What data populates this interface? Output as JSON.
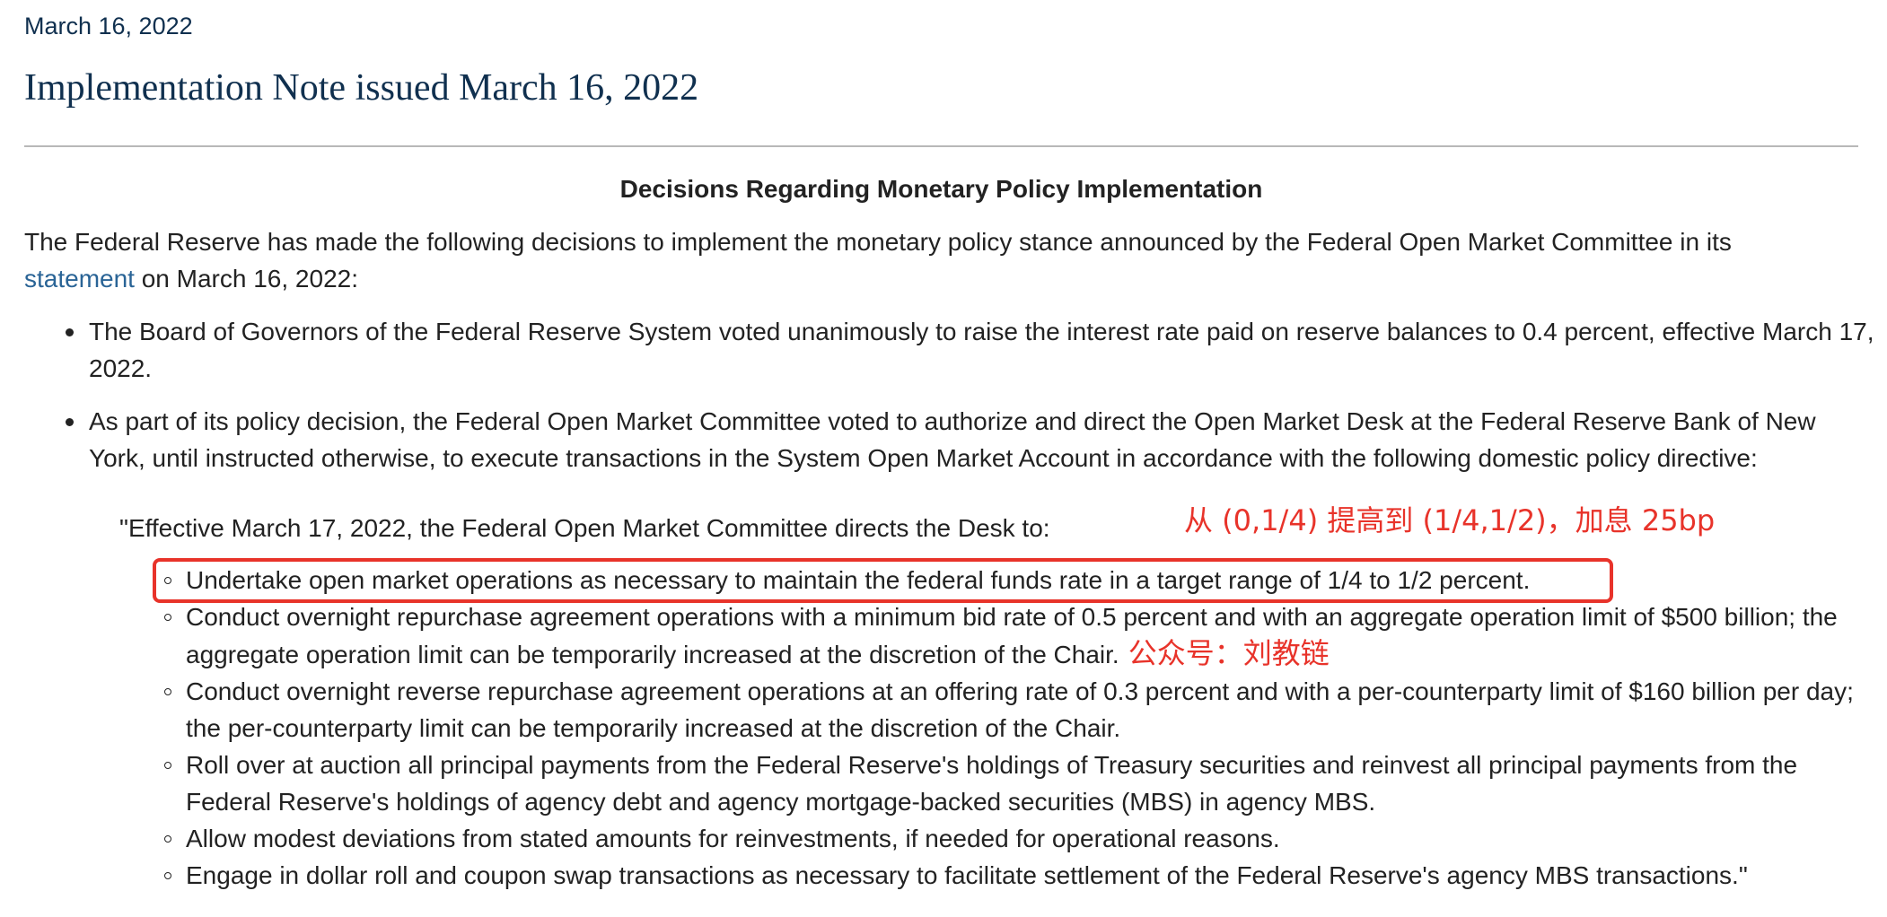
{
  "header": {
    "date": "March 16, 2022",
    "title": "Implementation Note issued March 16, 2022"
  },
  "section": {
    "heading": "Decisions Regarding Monetary Policy Implementation",
    "intro_before_link": "The Federal Reserve has made the following decisions to implement the monetary policy stance announced by the Federal Open Market Committee in its ",
    "intro_link": "statement",
    "intro_after_link": " on March 16, 2022:"
  },
  "bullets": [
    "The Board of Governors of the Federal Reserve System voted unanimously to raise the interest rate paid on reserve balances to 0.4 percent, effective March 17, 2022.",
    "As part of its policy decision, the Federal Open Market Committee voted to authorize and direct the Open Market Desk at the Federal Reserve Bank of New York, until instructed otherwise, to execute transactions in the System Open Market Account in accordance with the following domestic policy directive:"
  ],
  "directive": {
    "intro": "\"Effective March 17, 2022, the Federal Open Market Committee directs the Desk to:",
    "items": [
      "Undertake open market operations as necessary to maintain the federal funds rate in a target range of 1/4 to 1/2 percent.",
      "Conduct overnight repurchase agreement operations with a minimum bid rate of 0.5 percent and with an aggregate operation limit of $500 billion; the aggregate operation limit can be temporarily increased at the discretion of the Chair.",
      "Conduct overnight reverse repurchase agreement operations at an offering rate of 0.3 percent and with a per-counterparty limit of $160 billion per day; the per-counterparty limit can be temporarily increased at the discretion of the Chair.",
      "Roll over at auction all principal payments from the Federal Reserve's holdings of Treasury securities and reinvest all principal payments from the Federal Reserve's holdings of agency debt and agency mortgage-backed securities (MBS) in agency MBS.",
      "Allow modest deviations from stated amounts for reinvestments, if needed for operational reasons.",
      "Engage in dollar roll and coupon swap transactions as necessary to facilitate settlement of the Federal Reserve's agency MBS transactions.\""
    ]
  },
  "annotations": {
    "rate_note": "从 (0,1/4) 提高到 (1/4,1/2)，加息 25bp",
    "account_note": "公众号：刘教链",
    "color": "#e8332a"
  }
}
